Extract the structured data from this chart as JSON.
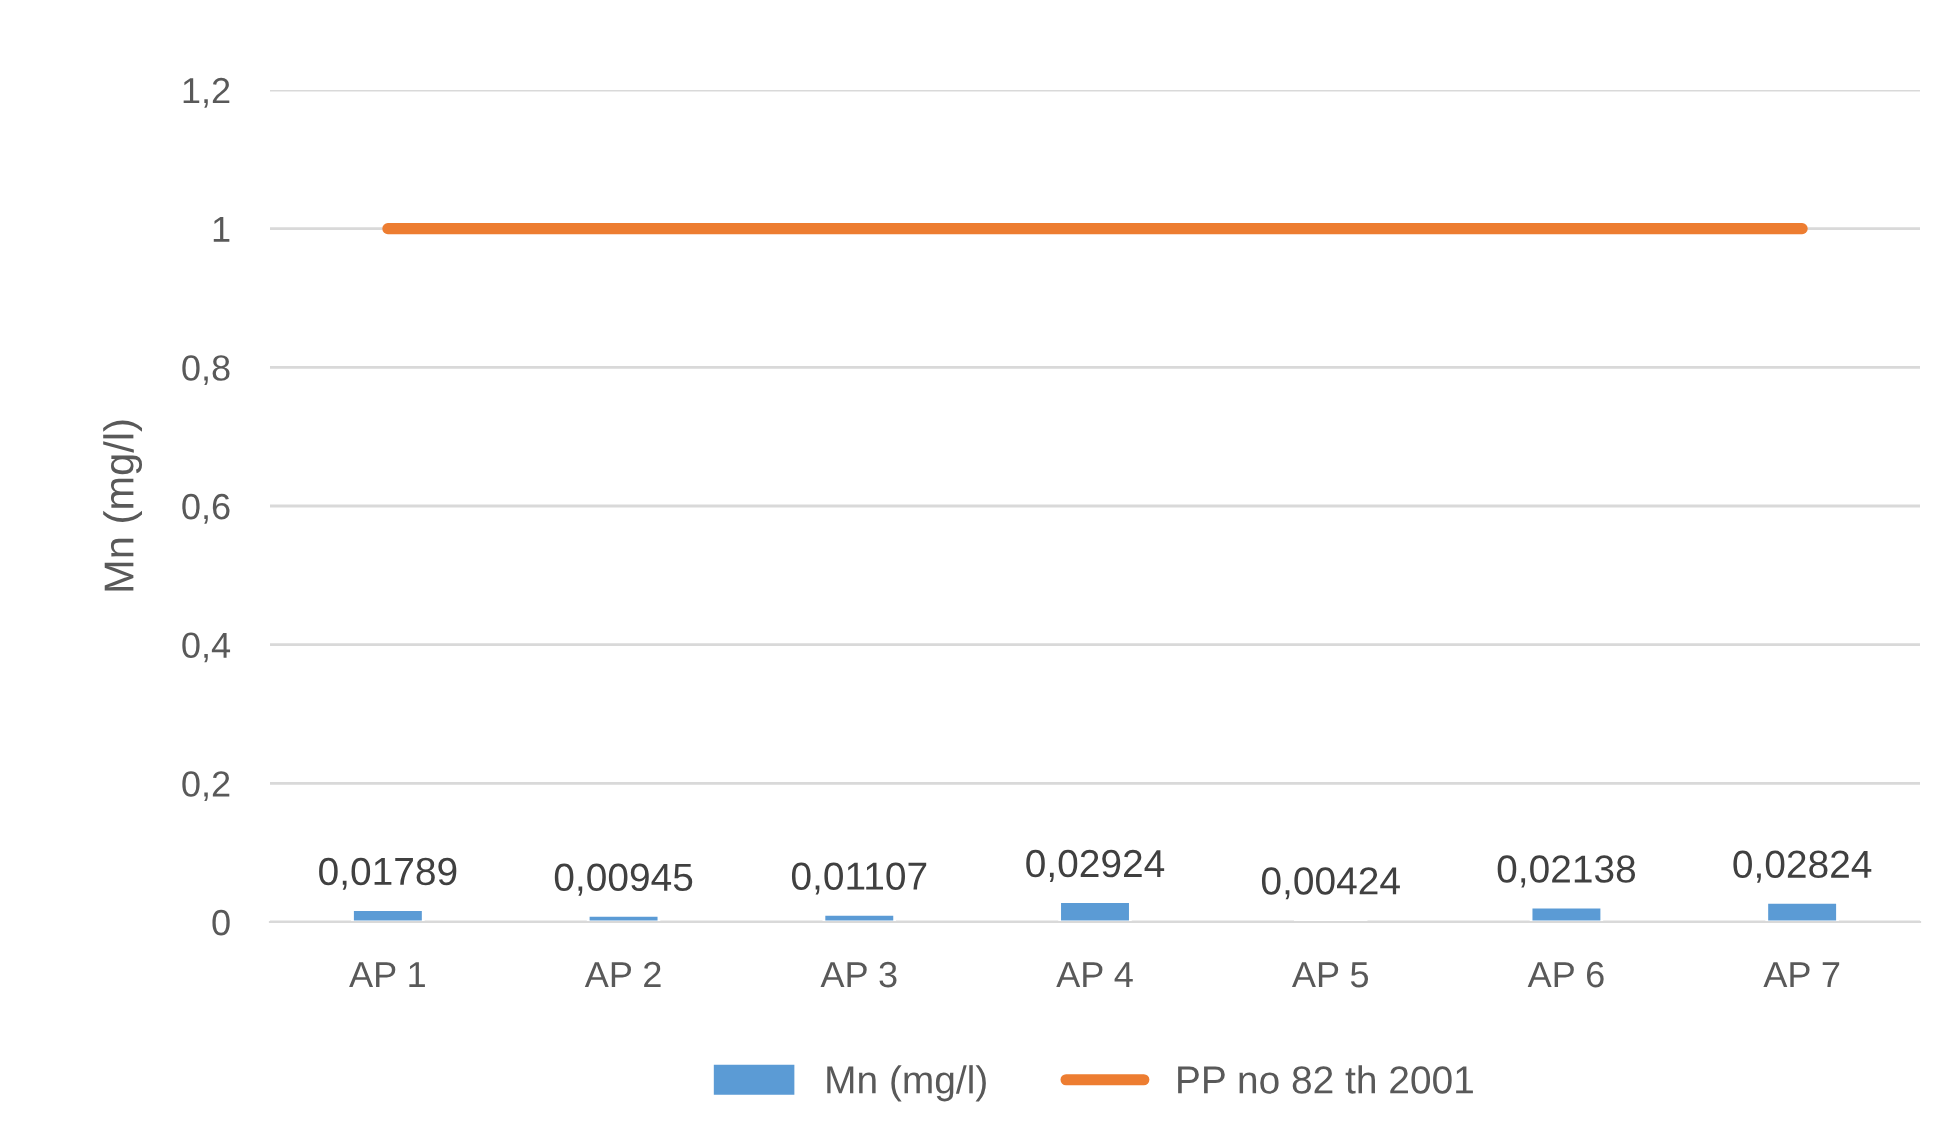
{
  "chart_data": {
    "type": "bar",
    "ylabel": "Mn (mg/l)",
    "categories": [
      "AP 1",
      "AP 2",
      "AP 3",
      "AP 4",
      "AP 5",
      "AP 6",
      "AP 7"
    ],
    "series": [
      {
        "name": "Mn (mg/l)",
        "color": "#5b9bd5",
        "values": [
          0.01789,
          0.00945,
          0.01107,
          0.02924,
          0.00424,
          0.02138,
          0.02824
        ],
        "value_labels": [
          "0,01789",
          "0,00945",
          "0,01107",
          "0,02924",
          "0,00424",
          "0,02138",
          "0,02824"
        ]
      },
      {
        "name": "PP no 82 th 2001",
        "type": "line",
        "color": "#ed7d31",
        "values": [
          1,
          1,
          1,
          1,
          1,
          1,
          1
        ]
      }
    ],
    "ylim": [
      0,
      1.2
    ],
    "yticks": [
      0,
      {
        "value": 0.2,
        "label": "0,2"
      },
      {
        "value": 0.4,
        "label": "0,4"
      },
      {
        "value": 0.6,
        "label": "0,6"
      },
      {
        "value": 0.8,
        "label": "0,8"
      },
      1,
      {
        "value": 1.2,
        "label": "1,2"
      }
    ],
    "grid": "y",
    "legend": "bottom"
  }
}
